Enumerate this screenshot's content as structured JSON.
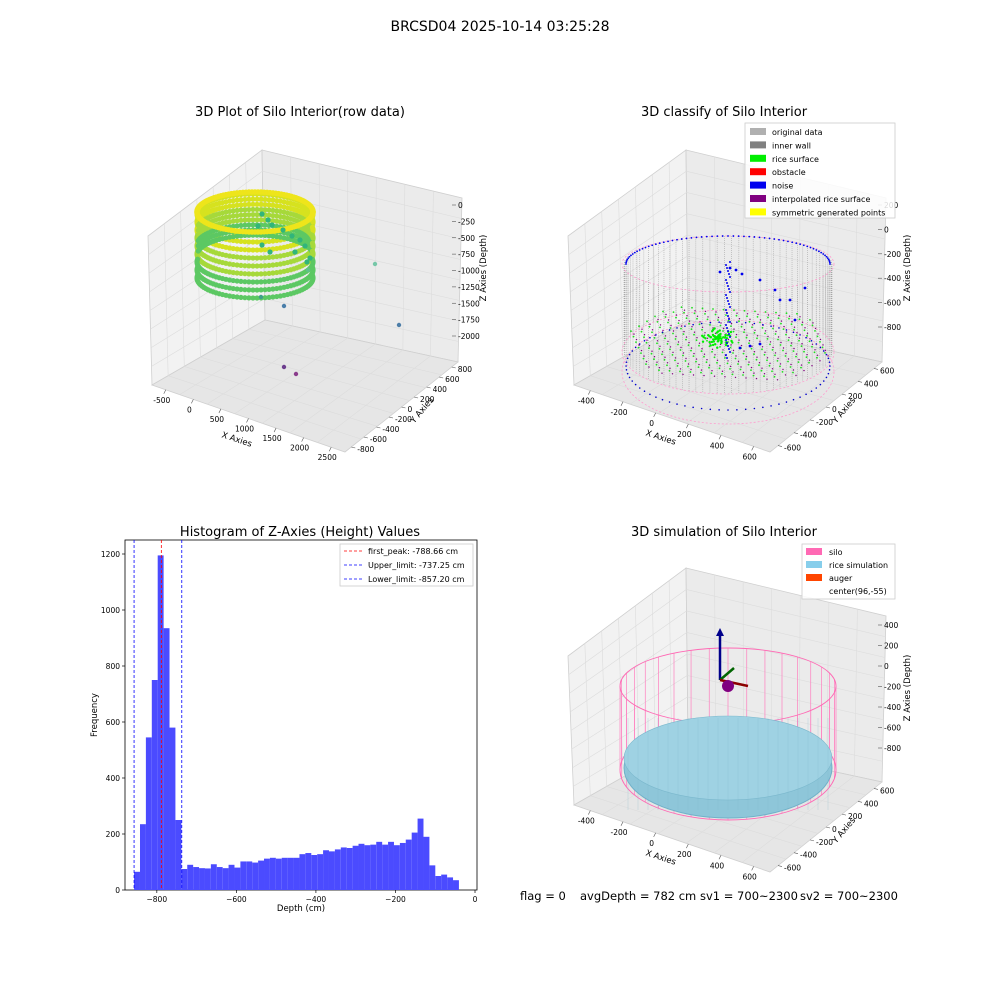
{
  "figure": {
    "suptitle": "BRCSD04 2025-10-14 03:25:28",
    "footer": {
      "flag": "flag = 0",
      "avg_depth": "avgDepth = 782 cm",
      "sv1": "sv1 = 700~2300",
      "sv2": "sv2 = 700~2300"
    }
  },
  "panels": {
    "raw": {
      "title": "3D Plot of Silo Interior(row data)",
      "xlabel": "X Axies",
      "ylabel": "Y Axies",
      "zlabel": "Z Axies (Depth)",
      "xticks": [
        "-500",
        "0",
        "500",
        "1000",
        "1500",
        "2000",
        "2500"
      ],
      "yticks": [
        "-800",
        "-600",
        "-400",
        "-200",
        "0",
        "200",
        "400",
        "600",
        "800"
      ],
      "zticks": [
        "0",
        "-250",
        "-500",
        "-750",
        "-1000",
        "-1250",
        "-1500",
        "-1750",
        "-2000"
      ]
    },
    "classify": {
      "title": "3D classify of Silo Interior",
      "xlabel": "X Axies",
      "ylabel": "Y Axies",
      "zlabel": "Z Axies (Depth)",
      "xticks": [
        "-400",
        "-200",
        "0",
        "200",
        "400",
        "600"
      ],
      "yticks": [
        "-600",
        "-400",
        "-200",
        "0",
        "200",
        "400",
        "600"
      ],
      "zticks": [
        "200",
        "0",
        "-200",
        "-400",
        "-600",
        "-800"
      ],
      "legend": [
        {
          "label": "original data",
          "color": "#b0b0b0"
        },
        {
          "label": "inner wall",
          "color": "#808080"
        },
        {
          "label": "rice surface",
          "color": "#00ee00"
        },
        {
          "label": "obstacle",
          "color": "#ff0000"
        },
        {
          "label": "noise",
          "color": "#0000ee"
        },
        {
          "label": "interpolated rice surface",
          "color": "#800080"
        },
        {
          "label": "symmetric generated points",
          "color": "#ffff00"
        }
      ]
    },
    "simulation": {
      "title": "3D simulation of Silo Interior",
      "xlabel": "X Axies",
      "ylabel": "Y Axies",
      "zlabel": "Z Axies (Depth)",
      "xticks": [
        "-400",
        "-200",
        "0",
        "200",
        "400",
        "600"
      ],
      "yticks": [
        "-600",
        "-400",
        "-200",
        "0",
        "200",
        "400",
        "600"
      ],
      "zticks": [
        "400",
        "200",
        "0",
        "-200",
        "-400",
        "-600",
        "-800"
      ],
      "legend": [
        {
          "label": "silo",
          "color": "#ff69b4"
        },
        {
          "label": "rice simulation",
          "color": "#87ceeb"
        },
        {
          "label": "auger",
          "color": "#ff4500"
        },
        {
          "label": "center(96,-55)",
          "color": ""
        }
      ]
    }
  },
  "chart_data": {
    "type": "bar",
    "title": "Histogram of Z-Axies (Height) Values",
    "xlabel": "Depth (cm)",
    "ylabel": "Frequency",
    "xlim": [
      -880,
      5
    ],
    "ylim": [
      0,
      1250
    ],
    "xticks": [
      -800,
      -600,
      -400,
      -200,
      0
    ],
    "yticks": [
      0,
      200,
      400,
      600,
      800,
      1000,
      1200
    ],
    "bar_color": "#4b4bff",
    "bins": [
      {
        "x": -857.2,
        "value": 65
      },
      {
        "x": -842.3,
        "value": 235
      },
      {
        "x": -827.5,
        "value": 545
      },
      {
        "x": -812.6,
        "value": 750
      },
      {
        "x": -797.8,
        "value": 1195
      },
      {
        "x": -782.9,
        "value": 935
      },
      {
        "x": -768.1,
        "value": 580
      },
      {
        "x": -753.2,
        "value": 250
      },
      {
        "x": -738.4,
        "value": 75
      },
      {
        "x": -723.5,
        "value": 90
      },
      {
        "x": -708.7,
        "value": 82
      },
      {
        "x": -693.8,
        "value": 78
      },
      {
        "x": -679.0,
        "value": 77
      },
      {
        "x": -664.1,
        "value": 92
      },
      {
        "x": -649.3,
        "value": 82
      },
      {
        "x": -634.4,
        "value": 78
      },
      {
        "x": -619.6,
        "value": 90
      },
      {
        "x": -604.7,
        "value": 80
      },
      {
        "x": -589.9,
        "value": 102
      },
      {
        "x": -575.0,
        "value": 102
      },
      {
        "x": -560.2,
        "value": 98
      },
      {
        "x": -545.3,
        "value": 105
      },
      {
        "x": -530.5,
        "value": 112
      },
      {
        "x": -515.6,
        "value": 115
      },
      {
        "x": -500.8,
        "value": 112
      },
      {
        "x": -485.9,
        "value": 115
      },
      {
        "x": -471.1,
        "value": 115
      },
      {
        "x": -456.2,
        "value": 115
      },
      {
        "x": -441.4,
        "value": 128
      },
      {
        "x": -426.5,
        "value": 132
      },
      {
        "x": -411.7,
        "value": 125
      },
      {
        "x": -396.8,
        "value": 128
      },
      {
        "x": -382.0,
        "value": 142
      },
      {
        "x": -367.1,
        "value": 138
      },
      {
        "x": -352.3,
        "value": 145
      },
      {
        "x": -337.4,
        "value": 152
      },
      {
        "x": -322.6,
        "value": 150
      },
      {
        "x": -307.7,
        "value": 158
      },
      {
        "x": -292.9,
        "value": 165
      },
      {
        "x": -278.0,
        "value": 160
      },
      {
        "x": -263.2,
        "value": 162
      },
      {
        "x": -248.3,
        "value": 172
      },
      {
        "x": -233.5,
        "value": 162
      },
      {
        "x": -218.6,
        "value": 172
      },
      {
        "x": -203.8,
        "value": 160
      },
      {
        "x": -188.9,
        "value": 168
      },
      {
        "x": -174.1,
        "value": 180
      },
      {
        "x": -159.2,
        "value": 205
      },
      {
        "x": -144.4,
        "value": 255
      },
      {
        "x": -129.5,
        "value": 190
      },
      {
        "x": -114.7,
        "value": 88
      },
      {
        "x": -99.8,
        "value": 50
      },
      {
        "x": -85.0,
        "value": 55
      },
      {
        "x": -70.1,
        "value": 45
      },
      {
        "x": -55.3,
        "value": 35
      }
    ],
    "bin_width": 14.85,
    "lines": [
      {
        "label": "first_peak: -788.66 cm",
        "x": -788.66,
        "color": "#ff0000"
      },
      {
        "label": "Upper_limit: -737.25 cm",
        "x": -737.25,
        "color": "#0000ff"
      },
      {
        "label": "Lower_limit: -857.20 cm",
        "x": -857.2,
        "color": "#0000ff"
      }
    ]
  }
}
